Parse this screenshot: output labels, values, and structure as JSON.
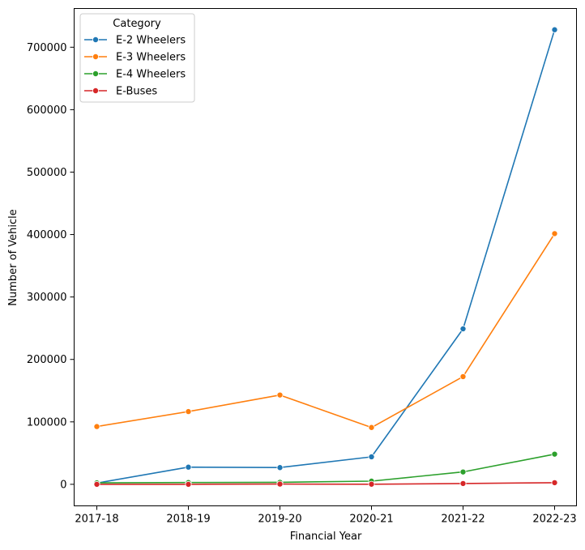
{
  "chart_data": {
    "type": "line",
    "xlabel": "Financial Year",
    "ylabel": "Number of Vehicle",
    "categories": [
      "2017-18",
      "2018-19",
      "2019-20",
      "2020-21",
      "2021-22",
      "2022-23"
    ],
    "ylim": [
      -34500,
      762000
    ],
    "yticks": [
      0,
      100000,
      200000,
      300000,
      400000,
      500000,
      600000,
      700000
    ],
    "legend": {
      "title": "Category",
      "position": "top-left"
    },
    "grid": false,
    "series": [
      {
        "name": "E-2 Wheelers",
        "color": "#1f77b4",
        "values": [
          1900,
          27500,
          26800,
          44000,
          249000,
          728000
        ]
      },
      {
        "name": "E-3 Wheelers",
        "color": "#ff7f0e",
        "values": [
          92500,
          116500,
          143000,
          91000,
          172500,
          401500
        ]
      },
      {
        "name": "E-4 Wheelers",
        "color": "#2ca02c",
        "values": [
          2300,
          2800,
          3200,
          5100,
          19800,
          48300
        ]
      },
      {
        "name": "E-Buses",
        "color": "#d62728",
        "values": [
          0,
          0,
          400,
          200,
          1300,
          2600
        ]
      }
    ]
  }
}
